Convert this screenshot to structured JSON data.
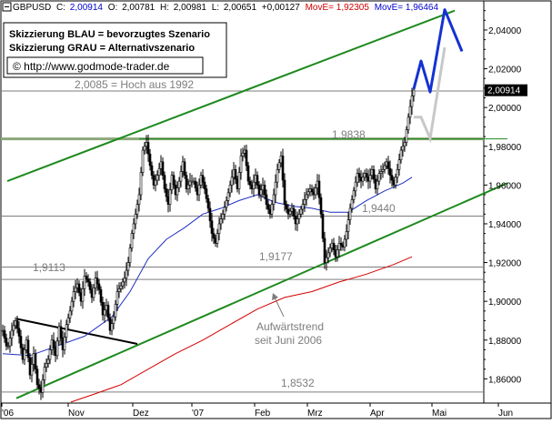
{
  "header": {
    "symbol": "GBPUSD",
    "close_label": "C:",
    "close": "2,00914",
    "open_label": "O:",
    "open": "2,00781",
    "high_label": "H:",
    "high": "2,00981",
    "low_label": "L:",
    "low": "2,00651",
    "change": "+0,00127",
    "ma1_label": "MovE=",
    "ma1": "1,92305",
    "ma2_label": "MovE=",
    "ma2": "1,96464"
  },
  "legend": {
    "line1": "Skizzierung BLAU = bevorzugtes Szenario",
    "line2": "Skizzierung GRAU = Alternativszenario",
    "copyright": "© http://www.godmode-trader.de"
  },
  "annotations": {
    "high1992": "2,0085 = Hoch aus 1992",
    "l19838": "1,9838",
    "l19440": "1,9440",
    "l19177": "1,9177",
    "l19113": "1,9113",
    "l18532": "1,8532",
    "trend_line1": "Aufwärtstrend",
    "trend_line2": "seit Juni 2006"
  },
  "colors": {
    "channel": "#1f8a1f",
    "ma_fast": "#1f2fbf",
    "ma_slow": "#d40000",
    "blue_scenario": "#1432d2",
    "grey_scenario": "#c8c8c8",
    "hline": "#7d7d7d",
    "resistance": "#8aa878",
    "price": "#000000",
    "header_blue": "#0000d0",
    "header_red": "#d00000"
  },
  "chart_data": {
    "type": "candlestick",
    "ylim": [
      1.8475,
      2.055
    ],
    "y_ticks": [
      "2,04000",
      "2,02000",
      "2,00000",
      "1,98000",
      "1,96000",
      "1,94000",
      "1,92000",
      "1,90000",
      "1,88000",
      "1,86000"
    ],
    "x_ticks": [
      "'06",
      "Nov",
      "Dez",
      "'07",
      "Feb",
      "Mrz",
      "Apr",
      "Mai",
      "Jun"
    ],
    "last_price": "2,00914",
    "horizontal_levels": [
      2.0085,
      1.9838,
      1.944,
      1.9177,
      1.9113,
      1.8532
    ],
    "price_path": [
      [
        0,
        1.885
      ],
      [
        5,
        1.875
      ],
      [
        10,
        1.885
      ],
      [
        14,
        1.89
      ],
      [
        18,
        1.882
      ],
      [
        22,
        1.87
      ],
      [
        26,
        1.88
      ],
      [
        30,
        1.862
      ],
      [
        34,
        1.873
      ],
      [
        38,
        1.857
      ],
      [
        42,
        1.853
      ],
      [
        46,
        1.866
      ],
      [
        50,
        1.87
      ],
      [
        54,
        1.88
      ],
      [
        58,
        1.872
      ],
      [
        62,
        1.887
      ],
      [
        66,
        1.875
      ],
      [
        70,
        1.888
      ],
      [
        74,
        1.895
      ],
      [
        78,
        1.905
      ],
      [
        82,
        1.909
      ],
      [
        86,
        1.9
      ],
      [
        90,
        1.913
      ],
      [
        94,
        1.91
      ],
      [
        98,
        1.902
      ],
      [
        102,
        1.912
      ],
      [
        106,
        1.906
      ],
      [
        110,
        1.893
      ],
      [
        114,
        1.898
      ],
      [
        118,
        1.885
      ],
      [
        122,
        1.892
      ],
      [
        126,
        1.905
      ],
      [
        130,
        1.908
      ],
      [
        134,
        1.912
      ],
      [
        138,
        1.92
      ],
      [
        142,
        1.935
      ],
      [
        146,
        1.945
      ],
      [
        150,
        1.955
      ],
      [
        154,
        1.978
      ],
      [
        158,
        1.982
      ],
      [
        162,
        1.97
      ],
      [
        166,
        1.96
      ],
      [
        170,
        1.965
      ],
      [
        174,
        1.972
      ],
      [
        178,
        1.958
      ],
      [
        182,
        1.95
      ],
      [
        186,
        1.965
      ],
      [
        190,
        1.955
      ],
      [
        194,
        1.962
      ],
      [
        198,
        1.972
      ],
      [
        202,
        1.958
      ],
      [
        206,
        1.962
      ],
      [
        210,
        1.962
      ],
      [
        214,
        1.955
      ],
      [
        218,
        1.965
      ],
      [
        222,
        1.958
      ],
      [
        226,
        1.948
      ],
      [
        230,
        1.935
      ],
      [
        234,
        1.93
      ],
      [
        238,
        1.94
      ],
      [
        242,
        1.945
      ],
      [
        246,
        1.952
      ],
      [
        250,
        1.96
      ],
      [
        254,
        1.968
      ],
      [
        258,
        1.958
      ],
      [
        262,
        1.975
      ],
      [
        266,
        1.978
      ],
      [
        270,
        1.962
      ],
      [
        274,
        1.958
      ],
      [
        278,
        1.965
      ],
      [
        282,
        1.955
      ],
      [
        286,
        1.96
      ],
      [
        290,
        1.95
      ],
      [
        294,
        1.945
      ],
      [
        298,
        1.955
      ],
      [
        302,
        1.968
      ],
      [
        306,
        1.975
      ],
      [
        310,
        1.95
      ],
      [
        314,
        1.945
      ],
      [
        318,
        1.948
      ],
      [
        322,
        1.94
      ],
      [
        326,
        1.945
      ],
      [
        330,
        1.95
      ],
      [
        334,
        1.955
      ],
      [
        338,
        1.958
      ],
      [
        342,
        1.955
      ],
      [
        346,
        1.962
      ],
      [
        350,
        1.945
      ],
      [
        354,
        1.92
      ],
      [
        358,
        1.925
      ],
      [
        362,
        1.93
      ],
      [
        366,
        1.923
      ],
      [
        370,
        1.93
      ],
      [
        374,
        1.928
      ],
      [
        378,
        1.936
      ],
      [
        382,
        1.948
      ],
      [
        386,
        1.957
      ],
      [
        390,
        1.966
      ],
      [
        394,
        1.962
      ],
      [
        398,
        1.966
      ],
      [
        402,
        1.962
      ],
      [
        406,
        1.968
      ],
      [
        410,
        1.958
      ],
      [
        414,
        1.966
      ],
      [
        418,
        1.968
      ],
      [
        422,
        1.972
      ],
      [
        426,
        1.965
      ],
      [
        430,
        1.96
      ],
      [
        434,
        1.968
      ],
      [
        438,
        1.978
      ],
      [
        442,
        1.982
      ],
      [
        446,
        1.995
      ],
      [
        450,
        2.006
      ],
      [
        452,
        2.009
      ]
    ],
    "series": [
      {
        "name": "MovE=1,96464",
        "color": "#1f2fbf",
        "points": [
          [
            0,
            1.873
          ],
          [
            30,
            1.872
          ],
          [
            60,
            1.877
          ],
          [
            90,
            1.882
          ],
          [
            120,
            1.892
          ],
          [
            140,
            1.905
          ],
          [
            160,
            1.922
          ],
          [
            180,
            1.932
          ],
          [
            200,
            1.938
          ],
          [
            220,
            1.945
          ],
          [
            240,
            1.948
          ],
          [
            260,
            1.952
          ],
          [
            280,
            1.955
          ],
          [
            300,
            1.951
          ],
          [
            320,
            1.949
          ],
          [
            340,
            1.948
          ],
          [
            360,
            1.946
          ],
          [
            380,
            1.946
          ],
          [
            400,
            1.952
          ],
          [
            420,
            1.957
          ],
          [
            440,
            1.961
          ],
          [
            450,
            1.964
          ]
        ]
      },
      {
        "name": "MovE=1,92305",
        "color": "#d40000",
        "points": [
          [
            75,
            1.848
          ],
          [
            100,
            1.852
          ],
          [
            130,
            1.857
          ],
          [
            160,
            1.865
          ],
          [
            190,
            1.873
          ],
          [
            220,
            1.88
          ],
          [
            250,
            1.888
          ],
          [
            280,
            1.896
          ],
          [
            310,
            1.902
          ],
          [
            340,
            1.905
          ],
          [
            370,
            1.91
          ],
          [
            400,
            1.914
          ],
          [
            430,
            1.919
          ],
          [
            450,
            1.923
          ]
        ]
      }
    ],
    "channel_upper": [
      [
        5,
        1.962
      ],
      [
        497,
        2.05
      ]
    ],
    "channel_mid": [
      [
        150,
        1.9838
      ],
      [
        555,
        1.9838
      ]
    ],
    "channel_lower": [
      [
        15,
        1.85
      ],
      [
        555,
        1.961
      ]
    ],
    "black_trendline": [
      [
        15,
        1.891
      ],
      [
        148,
        1.878
      ]
    ],
    "blue_scenario": [
      [
        452,
        2.0095
      ],
      [
        460,
        2.024
      ],
      [
        470,
        2.008
      ],
      [
        486,
        2.0505
      ],
      [
        505,
        2.029
      ]
    ],
    "grey_scenario": [
      [
        452,
        1.995
      ],
      [
        460,
        1.995
      ],
      [
        470,
        1.984
      ],
      [
        486,
        2.031
      ]
    ]
  }
}
